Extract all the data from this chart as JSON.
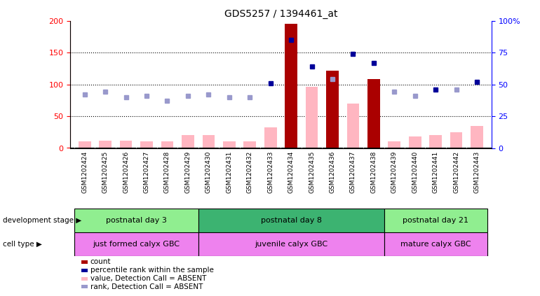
{
  "title": "GDS5257 / 1394461_at",
  "samples": [
    "GSM1202424",
    "GSM1202425",
    "GSM1202426",
    "GSM1202427",
    "GSM1202428",
    "GSM1202429",
    "GSM1202430",
    "GSM1202431",
    "GSM1202432",
    "GSM1202433",
    "GSM1202434",
    "GSM1202435",
    "GSM1202436",
    "GSM1202437",
    "GSM1202438",
    "GSM1202439",
    "GSM1202440",
    "GSM1202441",
    "GSM1202442",
    "GSM1202443"
  ],
  "count_present": [
    null,
    null,
    null,
    null,
    null,
    null,
    null,
    null,
    null,
    null,
    195,
    null,
    122,
    null,
    108,
    null,
    null,
    null,
    null,
    null
  ],
  "count_absent": [
    10,
    12,
    12,
    10,
    10,
    20,
    20,
    10,
    10,
    32,
    null,
    96,
    null,
    70,
    null,
    10,
    18,
    20,
    25,
    35
  ],
  "pct_present": [
    null,
    null,
    null,
    null,
    null,
    null,
    null,
    null,
    null,
    51,
    85,
    64,
    null,
    74,
    67,
    null,
    null,
    46,
    null,
    52
  ],
  "pct_absent": [
    42,
    44,
    40,
    41,
    37,
    41,
    42,
    40,
    40,
    null,
    null,
    null,
    54,
    null,
    null,
    44,
    41,
    null,
    46,
    null
  ],
  "dev_stage_groups": [
    {
      "label": "postnatal day 3",
      "start": 0,
      "end": 5,
      "color": "#90EE90"
    },
    {
      "label": "postnatal day 8",
      "start": 6,
      "end": 14,
      "color": "#3CB371"
    },
    {
      "label": "postnatal day 21",
      "start": 15,
      "end": 19,
      "color": "#90EE90"
    }
  ],
  "cell_type_groups": [
    {
      "label": "just formed calyx GBC",
      "start": 0,
      "end": 5,
      "color": "#DA70D6"
    },
    {
      "label": "juvenile calyx GBC",
      "start": 6,
      "end": 14,
      "color": "#DA70D6"
    },
    {
      "label": "mature calyx GBC",
      "start": 15,
      "end": 19,
      "color": "#DA70D6"
    }
  ],
  "ylim_left": [
    0,
    200
  ],
  "ylim_right": [
    0,
    100
  ],
  "bar_color_present": "#AA0000",
  "bar_color_absent": "#FFB6C1",
  "dot_color_present": "#000099",
  "dot_color_absent": "#9999CC",
  "yticks_left": [
    0,
    50,
    100,
    150,
    200
  ],
  "yticks_right": [
    0,
    25,
    50,
    75,
    100
  ],
  "legend_items": [
    {
      "label": "count",
      "color": "#AA0000"
    },
    {
      "label": "percentile rank within the sample",
      "color": "#000099"
    },
    {
      "label": "value, Detection Call = ABSENT",
      "color": "#FFB6C1"
    },
    {
      "label": "rank, Detection Call = ABSENT",
      "color": "#9999CC"
    }
  ]
}
